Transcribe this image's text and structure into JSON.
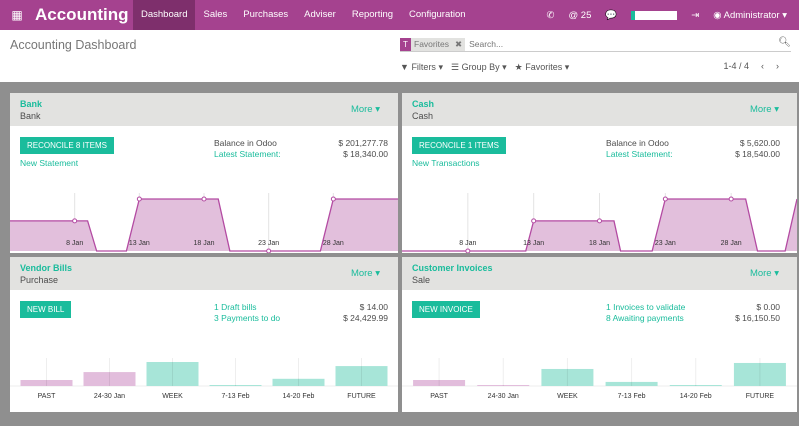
{
  "navbar": {
    "app_title": "Accounting",
    "menu": [
      "Dashboard",
      "Sales",
      "Purchases",
      "Adviser",
      "Reporting",
      "Configuration"
    ],
    "active": "Dashboard",
    "notification_count": "25",
    "user": "Administrator"
  },
  "control": {
    "title": "Accounting Dashboard",
    "facet": "Favorites",
    "search_placeholder": "Search...",
    "filters": "Filters ▾",
    "group_by": "Group By ▾",
    "favorites": "Favorites ▾",
    "pager": "1-4 / 4"
  },
  "colors": {
    "brand": "#a5428f",
    "accent": "#1abc9c",
    "past": "#e0b9da",
    "future": "#a2e4d6"
  },
  "panels": [
    {
      "name": "Bank",
      "sub": "Bank",
      "more": "More ▾",
      "button": "Reconcile 8 Items",
      "link": "New Statement",
      "rows": [
        {
          "label": "Balance in Odoo",
          "value": "$ 201,277.78"
        },
        {
          "label": "Latest Statement:",
          "value": "$ 18,340.00"
        }
      ]
    },
    {
      "name": "Cash",
      "sub": "Cash",
      "more": "More ▾",
      "button": "Reconcile 1 Items",
      "link": "New Transactions",
      "rows": [
        {
          "label": "Balance in Odoo",
          "value": "$ 5,620.00"
        },
        {
          "label": "Latest Statement:",
          "value": "$ 18,540.00"
        }
      ]
    },
    {
      "name": "Vendor Bills",
      "sub": "Purchase",
      "more": "More ▾",
      "button": "New Bill",
      "rows": [
        {
          "label": "1 Draft bills",
          "value": "$ 14.00"
        },
        {
          "label": "3 Payments to do",
          "value": "$ 24,429.99"
        }
      ]
    },
    {
      "name": "Customer Invoices",
      "sub": "Sale",
      "more": "More ▾",
      "button": "New Invoice",
      "rows": [
        {
          "label": "1 Invoices to validate",
          "value": "$ 0.00"
        },
        {
          "label": "8 Awaiting payments",
          "value": "$ 16,150.50"
        }
      ]
    }
  ],
  "chart_data": [
    {
      "type": "area",
      "ticks": [
        "8 Jan",
        "13 Jan",
        "18 Jan",
        "23 Jan",
        "28 Jan"
      ],
      "tick_days": [
        8,
        13,
        18,
        23,
        28
      ],
      "xlim": [
        3,
        33
      ],
      "ylim": [
        0,
        100
      ],
      "points": [
        [
          3,
          58
        ],
        [
          9,
          58
        ],
        [
          9.7,
          0
        ],
        [
          12,
          0
        ],
        [
          13,
          100
        ],
        [
          19.1,
          100
        ],
        [
          20,
          0
        ],
        [
          27,
          0
        ],
        [
          28,
          100
        ],
        [
          33,
          100
        ]
      ],
      "markers": [
        8,
        13,
        18,
        23,
        28
      ]
    },
    {
      "type": "area",
      "ticks": [
        "8 Jan",
        "13 Jan",
        "18 Jan",
        "23 Jan",
        "28 Jan"
      ],
      "tick_days": [
        8,
        13,
        18,
        23,
        28
      ],
      "xlim": [
        3,
        33
      ],
      "ylim": [
        0,
        100
      ],
      "points": [
        [
          3,
          0
        ],
        [
          12.4,
          0
        ],
        [
          13,
          58
        ],
        [
          19.1,
          58
        ],
        [
          19.6,
          0
        ],
        [
          22,
          0
        ],
        [
          23,
          100
        ],
        [
          29.1,
          100
        ],
        [
          30,
          0
        ],
        [
          32.1,
          0
        ],
        [
          33,
          100
        ]
      ],
      "markers": [
        8,
        13,
        18,
        23,
        28
      ]
    },
    {
      "type": "bar",
      "categories": [
        "PAST",
        "24-30 Jan",
        "WEEK",
        "7-13 Feb",
        "14-20 Feb",
        "FUTURE"
      ],
      "values": [
        25,
        58,
        100,
        4,
        30,
        83
      ],
      "ylim": [
        0,
        100
      ]
    },
    {
      "type": "bar",
      "categories": [
        "PAST",
        "24-30 Jan",
        "WEEK",
        "7-13 Feb",
        "14-20 Feb",
        "FUTURE"
      ],
      "values": [
        25,
        4,
        71,
        17,
        4,
        96
      ],
      "ylim": [
        0,
        100
      ]
    }
  ]
}
